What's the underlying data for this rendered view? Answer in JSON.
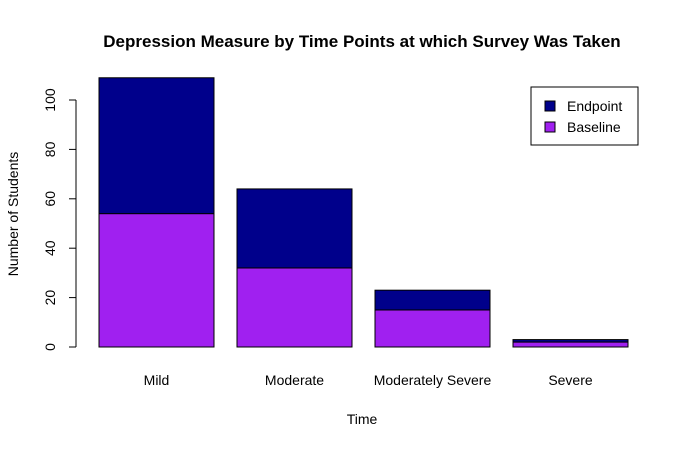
{
  "chart_data": {
    "type": "bar",
    "stacked": true,
    "title": "Depression Measure by Time Points at which Survey Was Taken",
    "xlabel": "Time",
    "ylabel": "Number of Students",
    "categories": [
      "Mild",
      "Moderate",
      "Moderately Severe",
      "Severe"
    ],
    "series": [
      {
        "name": "Baseline",
        "values": [
          54,
          32,
          15,
          2
        ],
        "color": "#A020F0"
      },
      {
        "name": "Endpoint",
        "values": [
          55,
          32,
          8,
          1
        ],
        "color": "#00008B"
      }
    ],
    "ylim": [
      0,
      100
    ],
    "yticks": [
      0,
      20,
      40,
      60,
      80,
      100
    ],
    "legend": {
      "placement": "top-right",
      "order": [
        "Endpoint",
        "Baseline"
      ]
    },
    "grid": false
  }
}
